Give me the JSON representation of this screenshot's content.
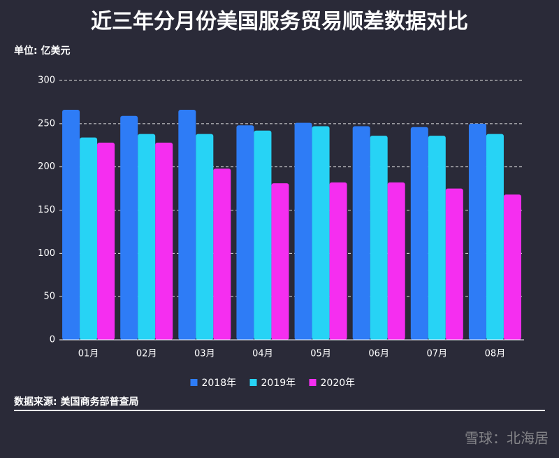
{
  "chart_data": {
    "type": "bar",
    "title": "近三年分月份美国服务贸易顺差数据对比",
    "unit_label": "单位: 亿美元",
    "source": "数据来源: 美国商务部普查局",
    "watermark": "雪球：北海居",
    "categories": [
      "01月",
      "02月",
      "03月",
      "04月",
      "05月",
      "06月",
      "07月",
      "08月"
    ],
    "series": [
      {
        "name": "2018年",
        "color": "#2e7cf6",
        "values": [
          266,
          259,
          266,
          248,
          251,
          247,
          246,
          250
        ]
      },
      {
        "name": "2019年",
        "color": "#27d3f5",
        "values": [
          234,
          238,
          238,
          242,
          247,
          236,
          236,
          238
        ]
      },
      {
        "name": "2020年",
        "color": "#f52ef0",
        "values": [
          228,
          228,
          198,
          181,
          182,
          182,
          175,
          168
        ]
      }
    ],
    "ylim": [
      0,
      300
    ],
    "yticks": [
      0,
      50,
      100,
      150,
      200,
      250,
      300
    ],
    "grid": true
  }
}
